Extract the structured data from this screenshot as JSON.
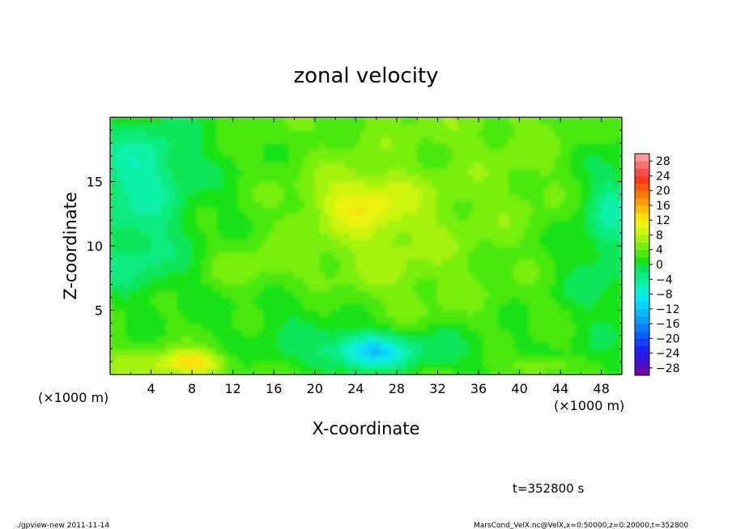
{
  "chart_data": {
    "type": "heatmap",
    "title": "zonal velocity",
    "xlabel": "X-coordinate",
    "ylabel": "Z-coordinate",
    "x_unit": "(×1000 m)",
    "y_unit": "(×1000 m)",
    "xlim": [
      0,
      50
    ],
    "ylim": [
      0,
      20
    ],
    "x_ticks": [
      4,
      8,
      12,
      16,
      20,
      24,
      28,
      32,
      36,
      40,
      44,
      48
    ],
    "y_ticks": [
      5,
      10,
      15
    ],
    "colorbar": {
      "ticks": [
        28,
        24,
        20,
        16,
        12,
        8,
        4,
        0,
        -4,
        -8,
        -12,
        -16,
        -20,
        -24,
        -28
      ],
      "levels": [
        -30,
        -28,
        -26,
        -24,
        -22,
        -20,
        -18,
        -16,
        -14,
        -12,
        -10,
        -8,
        -6,
        -4,
        -2,
        0,
        2,
        4,
        6,
        8,
        10,
        12,
        14,
        16,
        18,
        20,
        22,
        24,
        26,
        28,
        30
      ],
      "colors": [
        "#6a0aa8",
        "#4e10c6",
        "#3018e0",
        "#1e22f2",
        "#1440fa",
        "#0c60fa",
        "#0a7efa",
        "#0a9cf8",
        "#08b8f8",
        "#08d2f8",
        "#08e8f0",
        "#0af0d2",
        "#08f0a8",
        "#08ec80",
        "#08e658",
        "#14e214",
        "#4ae810",
        "#78ee10",
        "#a4f210",
        "#ccf410",
        "#ecf210",
        "#fae008",
        "#fac008",
        "#fa9c08",
        "#fa7a08",
        "#fa5a08",
        "#fa3a18",
        "#fa4a4a",
        "#fa7070",
        "#fa9898"
      ]
    },
    "time_label": "t=352800 s",
    "features": [
      {
        "x": 6.5,
        "z": 15,
        "value": -11,
        "note": "westward jet core, upper left"
      },
      {
        "x": 24.5,
        "z": 13.5,
        "value": 10,
        "note": "eastward maximum, upper middle"
      },
      {
        "x": 8.5,
        "z": 1.0,
        "value": 10,
        "note": "eastward maximum near surface"
      },
      {
        "x": 25.5,
        "z": 1.8,
        "value": -12,
        "note": "westward minimum near surface"
      },
      {
        "x": 42,
        "z": 0.6,
        "value": 8,
        "note": "eastward near surface, right"
      },
      {
        "x": 49,
        "z": 13,
        "value": -8,
        "note": "westward, right edge"
      }
    ]
  },
  "footer": {
    "left": "./gpview-new  2011-11-14",
    "right": "MarsCond_VelX.nc@VelX,x=0:50000,z=0:20000,t=352800"
  }
}
